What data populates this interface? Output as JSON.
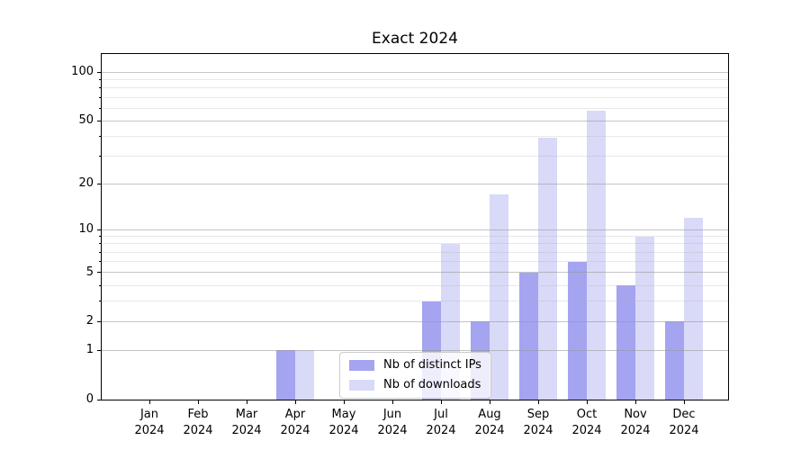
{
  "chart_data": {
    "type": "bar",
    "title": "Exact 2024",
    "categories": [
      "Jan",
      "Feb",
      "Mar",
      "Apr",
      "May",
      "Jun",
      "Jul",
      "Aug",
      "Sep",
      "Oct",
      "Nov",
      "Dec"
    ],
    "year_label": "2024",
    "series": [
      {
        "name": "Nb of distinct IPs",
        "color": "#a4a4f0",
        "values": [
          0,
          0,
          0,
          1,
          0,
          0,
          3,
          2,
          5,
          6,
          4,
          2
        ]
      },
      {
        "name": "Nb of downloads",
        "color": "#d9d9f8",
        "values": [
          0,
          0,
          0,
          1,
          0,
          0,
          8,
          17,
          39,
          58,
          9,
          12
        ]
      }
    ],
    "yscale": "log1p",
    "ylim": [
      0,
      130
    ],
    "yticks_major": [
      0,
      1,
      2,
      5,
      10,
      20,
      50,
      100
    ],
    "yticks_minor": [
      3,
      4,
      6,
      7,
      8,
      9,
      30,
      40,
      60,
      70,
      80,
      90
    ],
    "xlabel": "",
    "ylabel": "",
    "grid": "both",
    "legend_position": "lower-center",
    "colors": {
      "spine": "#000000",
      "grid_major": "#c6c6c6",
      "grid_minor": "#e9e9e9",
      "text": "#000000",
      "background": "#ffffff"
    }
  }
}
